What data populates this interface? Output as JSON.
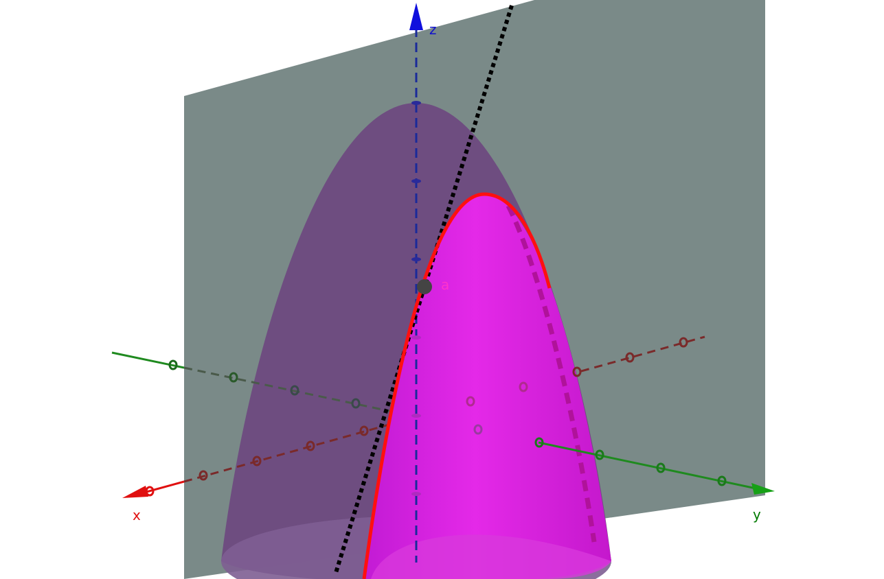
{
  "scene": {
    "type": "3d-graph",
    "axes": {
      "x": {
        "label": "x",
        "color": "#e01010"
      },
      "y": {
        "label": "y",
        "color": "#007a00"
      },
      "z": {
        "label": "z",
        "color": "#1010cc"
      }
    },
    "point": {
      "label": "a",
      "color": "#444444",
      "label_color": "#ff33cc"
    },
    "colors": {
      "plane": "#7a8a88",
      "paraboloid_outer": "#6e4a80",
      "surface_inner": "#e020e0",
      "curve": "#ff1010",
      "tangent_line": "#000000"
    }
  }
}
